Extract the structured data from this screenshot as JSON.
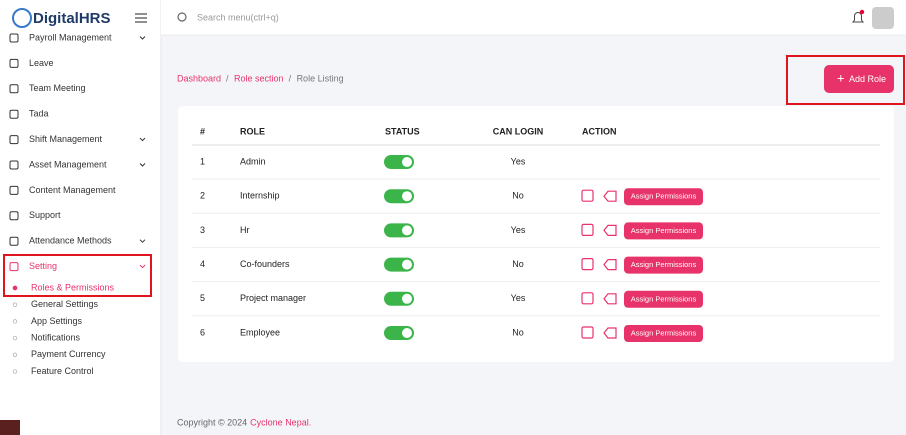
{
  "sidebar": {
    "logo": "DigitalHRS",
    "menu": [
      {
        "label": "Payroll Management",
        "has_submenu": true
      },
      {
        "label": "Leave",
        "has_submenu": false
      },
      {
        "label": "Team Meeting",
        "has_submenu": false
      },
      {
        "label": "Tada",
        "has_submenu": false
      },
      {
        "label": "Shift Management",
        "has_submenu": true
      },
      {
        "label": "Asset Management",
        "has_submenu": true
      },
      {
        "label": "Content Management",
        "has_submenu": false
      },
      {
        "label": "Support",
        "has_submenu": false
      },
      {
        "label": "Attendance Methods",
        "has_submenu": true
      },
      {
        "label": "Setting",
        "has_submenu": true
      }
    ],
    "submenu": [
      "Roles & Permissions",
      "General Settings",
      "App Settings",
      "Notifications",
      "Payment Currency",
      "Feature Control"
    ]
  },
  "header": {
    "search_placeholder": "Search menu(ctrl+q)"
  },
  "breadcrumb": [
    "Dashboard",
    "Role section",
    "Role Listing"
  ],
  "add_button": "Add Role",
  "table": {
    "columns": [
      "#",
      "ROLE",
      "STATUS",
      "CAN LOGIN",
      "ACTION"
    ],
    "action_label": "Assign Permissions",
    "rows": [
      {
        "index": 1,
        "role": "Admin",
        "status": true,
        "can_login": "Yes",
        "actions": false
      },
      {
        "index": 2,
        "role": "Internship",
        "status": true,
        "can_login": "No",
        "actions": true
      },
      {
        "index": 3,
        "role": "Hr",
        "status": true,
        "can_login": "Yes",
        "actions": true
      },
      {
        "index": 4,
        "role": "Co-founders",
        "status": true,
        "can_login": "No",
        "actions": true
      },
      {
        "index": 5,
        "role": "Project manager",
        "status": true,
        "can_login": "Yes",
        "actions": true
      },
      {
        "index": 6,
        "role": "Employee",
        "status": true,
        "can_login": "No",
        "actions": true
      }
    ]
  },
  "footer": {
    "text": "Copyright © 2024",
    "company": "Cyclone Nepal."
  }
}
